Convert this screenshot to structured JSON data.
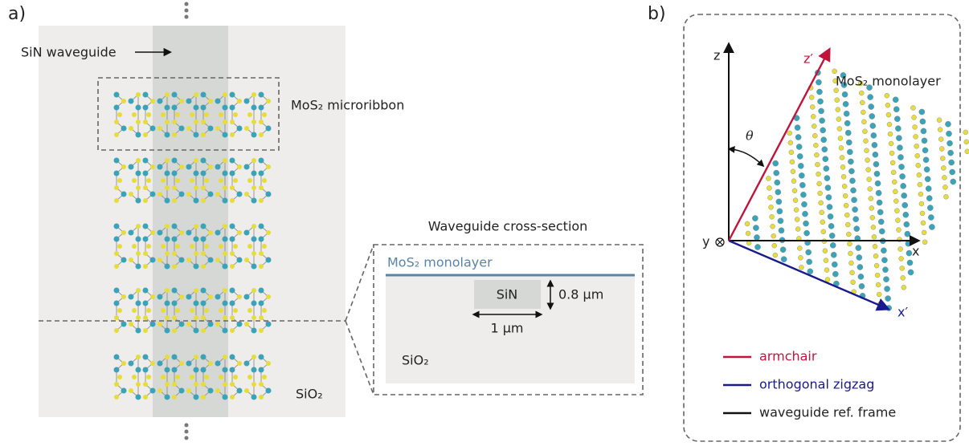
{
  "panel_a": {
    "label": "a)",
    "waveguide_label": "SiN waveguide",
    "ribbon_label": "MoS₂ microribbon",
    "substrate_label": "SiO₂",
    "cross_section": {
      "title": "Waveguide cross-section",
      "monolayer": "MoS₂ monolayer",
      "core": "SiN",
      "height": "0.8 µm",
      "width": "1 µm",
      "substrate": "SiO₂"
    }
  },
  "panel_b": {
    "label": "b)",
    "z": "z",
    "z_prime": "z′",
    "monolayer": "MoS₂ monolayer",
    "angle": "θ",
    "y": "y",
    "x": "x",
    "x_prime": "x′",
    "legend": [
      "armchair",
      "orthogonal zigzag",
      "waveguide ref. frame"
    ]
  }
}
